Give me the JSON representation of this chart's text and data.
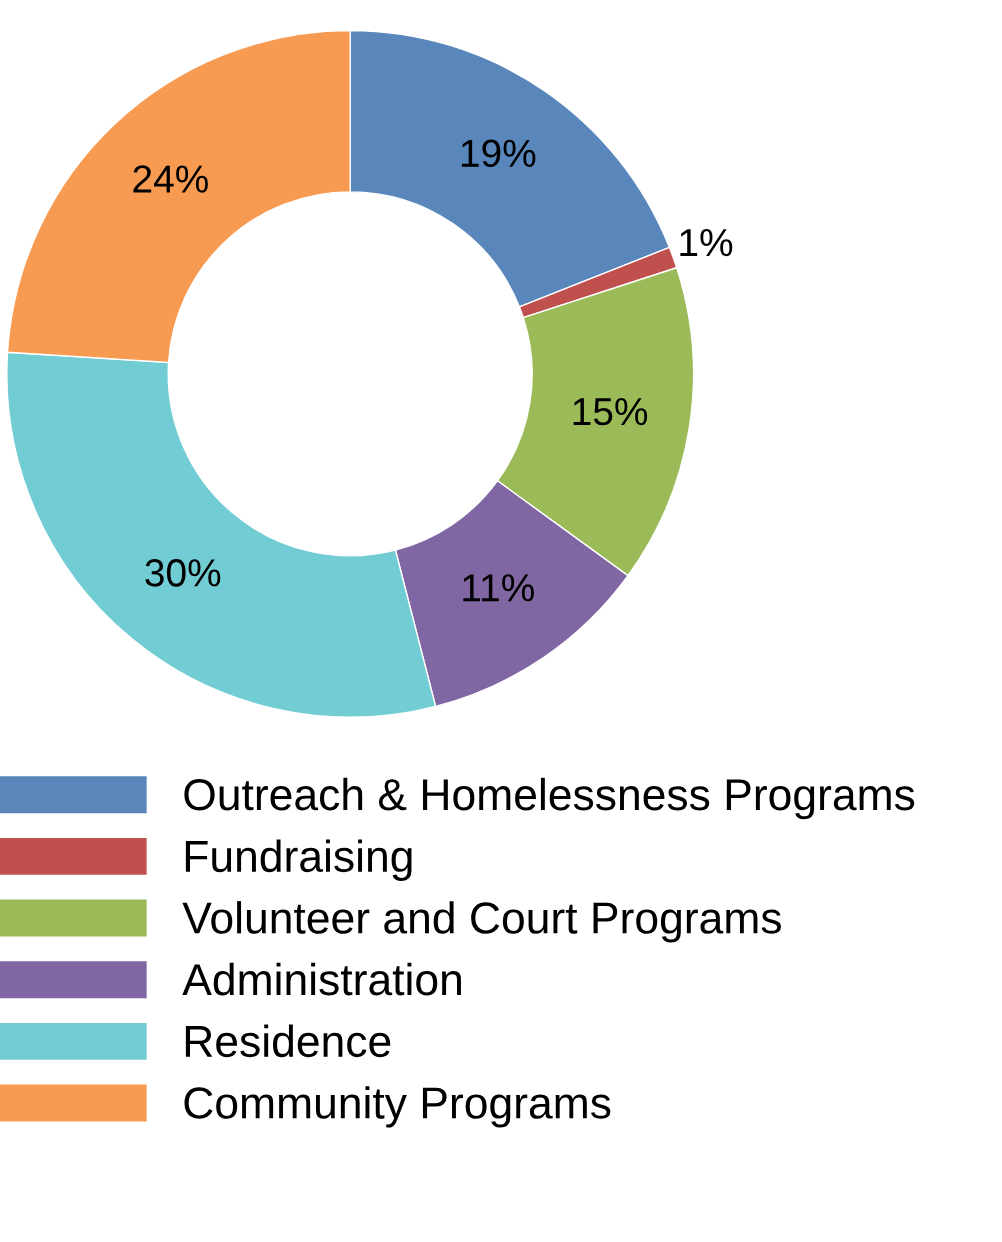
{
  "chart_data": {
    "type": "donut",
    "categories": [
      "Outreach & Homelessness Programs",
      "Fundraising",
      "Volunteer and Court Programs",
      "Administration",
      "Residence",
      "Community Programs"
    ],
    "values": [
      19,
      1,
      15,
      11,
      30,
      24
    ],
    "colors": [
      "#5a87bb",
      "#c0504d",
      "#9bbb59",
      "#8066a2",
      "#72ccd3",
      "#f79a52"
    ],
    "value_labels": [
      "19%",
      "1%",
      "15%",
      "11%",
      "30%",
      "24%"
    ],
    "legend": "bottom"
  }
}
